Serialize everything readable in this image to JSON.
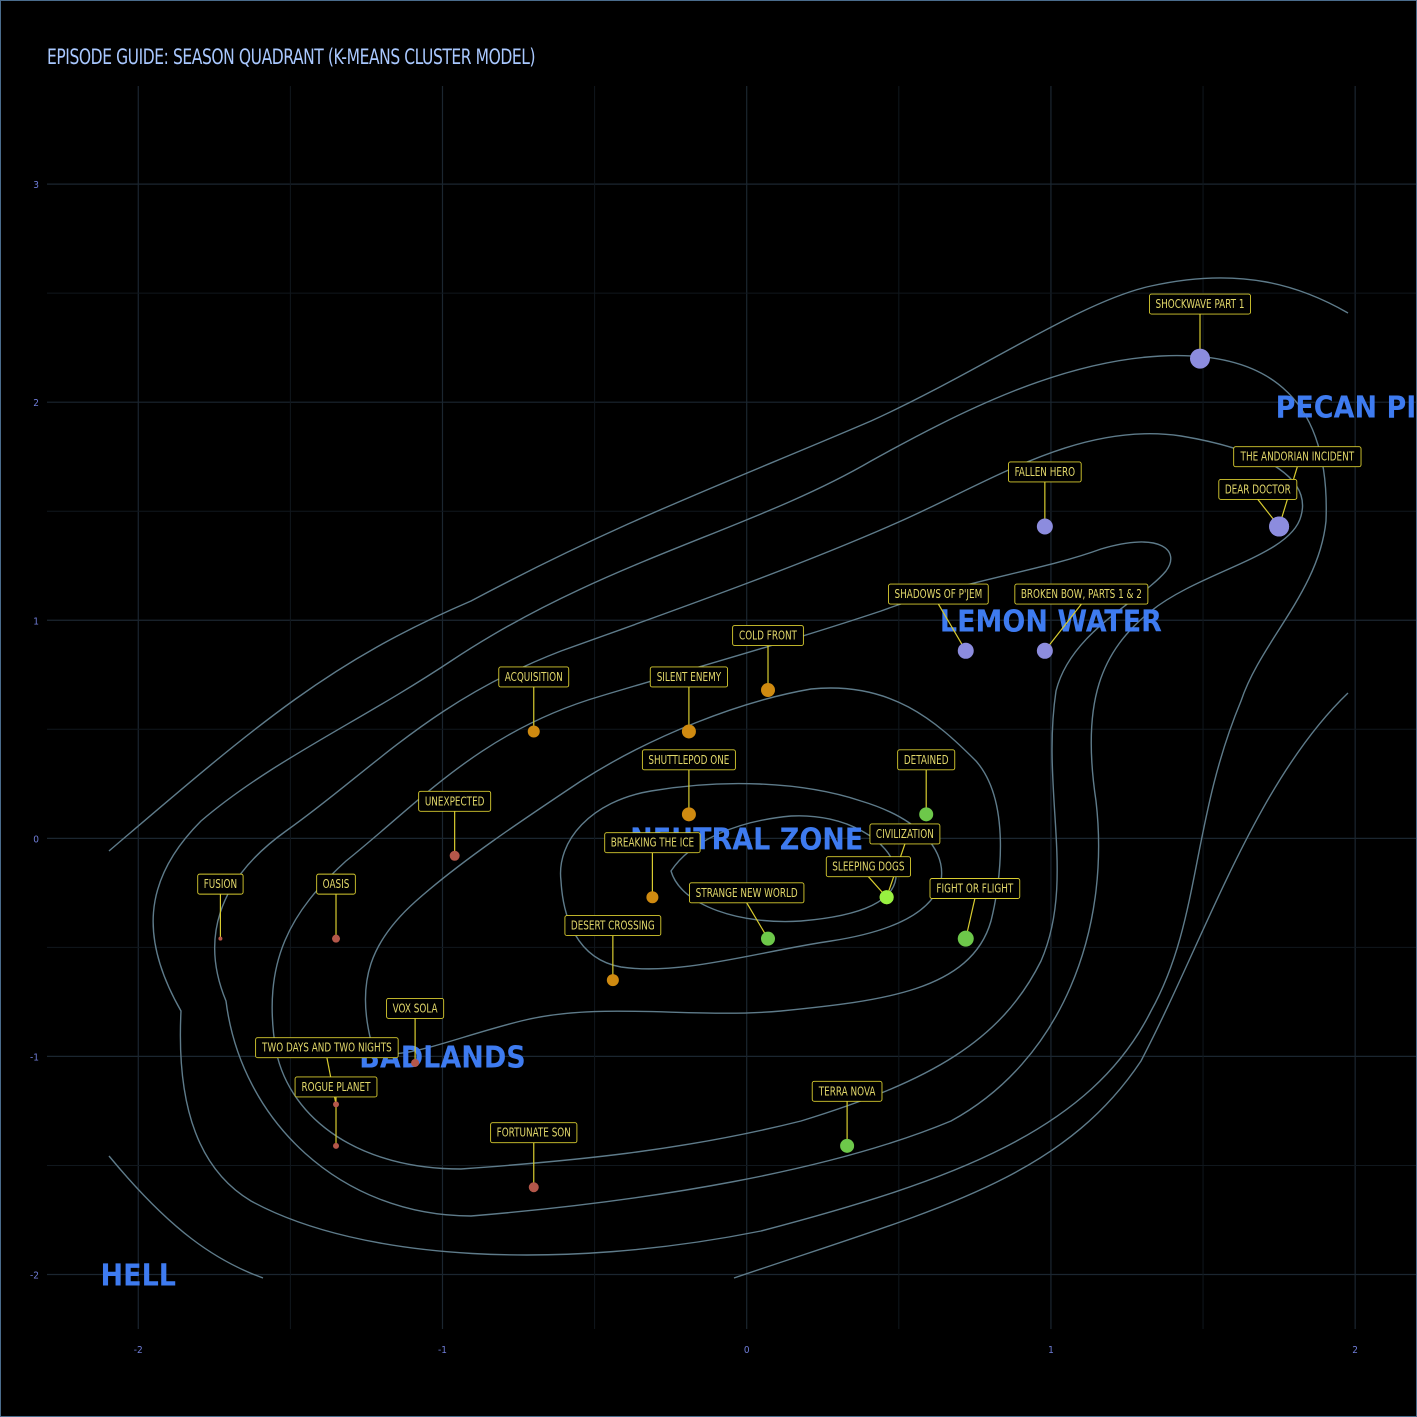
{
  "chart_data": {
    "type": "scatter",
    "title": "EPISODE GUIDE: SEASON QUADRANT (K-MEANS CLUSTER MODEL)",
    "xlabel": "",
    "ylabel": "",
    "xlim": [
      -2.3,
      2.2
    ],
    "ylim": [
      -2.25,
      3.45
    ],
    "xticks": [
      -2,
      -1,
      0,
      1,
      2
    ],
    "yticks": [
      -2,
      -1,
      0,
      1,
      2,
      3
    ],
    "grid": true,
    "legend": "none",
    "cluster_colors": {
      "badlands": "#b4574a",
      "neutral": "#cf8a10",
      "lemon": "#6dc84a",
      "pecan": "#8c8cde",
      "sleeping": "#98f040"
    },
    "regions": [
      {
        "label": "PECAN PIE",
        "x": 2.0,
        "y": 1.98
      },
      {
        "label": "LEMON WATER",
        "x": 1.0,
        "y": 1.0
      },
      {
        "label": "NEUTRAL ZONE",
        "x": 0.0,
        "y": 0.0
      },
      {
        "label": "BADLANDS",
        "x": -1.0,
        "y": -1.0
      },
      {
        "label": "HELL",
        "x": -2.0,
        "y": -2.0
      }
    ],
    "points": [
      {
        "label": "SHOCKWAVE PART 1",
        "x": 1.49,
        "y": 2.2,
        "size": 10,
        "cluster": "pecan",
        "lx": 1.49,
        "ly": 2.45
      },
      {
        "label": "THE ANDORIAN INCIDENT",
        "x": 1.75,
        "y": 1.43,
        "size": 10,
        "cluster": "pecan",
        "lx": 1.81,
        "ly": 1.75
      },
      {
        "label": "DEAR DOCTOR",
        "x": 1.75,
        "y": 1.43,
        "size": 10,
        "cluster": "pecan",
        "lx": 1.68,
        "ly": 1.6
      },
      {
        "label": "FALLEN HERO",
        "x": 0.98,
        "y": 1.43,
        "size": 8,
        "cluster": "pecan",
        "lx": 0.98,
        "ly": 1.68
      },
      {
        "label": "SHADOWS OF P'JEM",
        "x": 0.72,
        "y": 0.86,
        "size": 8,
        "cluster": "pecan",
        "lx": 0.63,
        "ly": 1.12
      },
      {
        "label": "BROKEN BOW, PARTS 1 & 2",
        "x": 0.98,
        "y": 0.86,
        "size": 8,
        "cluster": "pecan",
        "lx": 1.1,
        "ly": 1.12
      },
      {
        "label": "COLD FRONT",
        "x": 0.07,
        "y": 0.68,
        "size": 7,
        "cluster": "neutral",
        "lx": 0.07,
        "ly": 0.93
      },
      {
        "label": "ACQUISITION",
        "x": -0.7,
        "y": 0.49,
        "size": 6,
        "cluster": "neutral",
        "lx": -0.7,
        "ly": 0.74
      },
      {
        "label": "SILENT ENEMY",
        "x": -0.19,
        "y": 0.49,
        "size": 7,
        "cluster": "neutral",
        "lx": -0.19,
        "ly": 0.74
      },
      {
        "label": "SHUTTLEPOD ONE",
        "x": -0.19,
        "y": 0.11,
        "size": 7,
        "cluster": "neutral",
        "lx": -0.19,
        "ly": 0.36
      },
      {
        "label": "DETAINED",
        "x": 0.59,
        "y": 0.11,
        "size": 7,
        "cluster": "lemon",
        "lx": 0.59,
        "ly": 0.36
      },
      {
        "label": "UNEXPECTED",
        "x": -0.96,
        "y": -0.08,
        "size": 5,
        "cluster": "badlands",
        "lx": -0.96,
        "ly": 0.17
      },
      {
        "label": "CIVILIZATION",
        "x": 0.46,
        "y": -0.27,
        "size": 7,
        "cluster": "sleeping",
        "lx": 0.52,
        "ly": 0.02
      },
      {
        "label": "BREAKING THE ICE",
        "x": -0.31,
        "y": -0.27,
        "size": 6,
        "cluster": "neutral",
        "lx": -0.31,
        "ly": -0.02
      },
      {
        "label": "SLEEPING DOGS",
        "x": 0.46,
        "y": -0.27,
        "size": 7,
        "cluster": "sleeping",
        "lx": 0.4,
        "ly": -0.13
      },
      {
        "label": "FIGHT OR FLIGHT",
        "x": 0.72,
        "y": -0.46,
        "size": 8,
        "cluster": "lemon",
        "lx": 0.75,
        "ly": -0.23
      },
      {
        "label": "STRANGE NEW WORLD",
        "x": 0.07,
        "y": -0.46,
        "size": 7,
        "cluster": "lemon",
        "lx": 0.0,
        "ly": -0.25
      },
      {
        "label": "FUSION",
        "x": -1.73,
        "y": -0.46,
        "size": 2,
        "cluster": "badlands",
        "lx": -1.73,
        "ly": -0.21
      },
      {
        "label": "OASIS",
        "x": -1.35,
        "y": -0.46,
        "size": 4,
        "cluster": "badlands",
        "lx": -1.35,
        "ly": -0.21
      },
      {
        "label": "DESERT CROSSING",
        "x": -0.44,
        "y": -0.65,
        "size": 6,
        "cluster": "neutral",
        "lx": -0.44,
        "ly": -0.4
      },
      {
        "label": "VOX SOLA",
        "x": -1.09,
        "y": -1.03,
        "size": 4,
        "cluster": "badlands",
        "lx": -1.09,
        "ly": -0.78
      },
      {
        "label": "TWO DAYS AND TWO NIGHTS",
        "x": -1.35,
        "y": -1.22,
        "size": 3,
        "cluster": "badlands",
        "lx": -1.38,
        "ly": -0.96
      },
      {
        "label": "ROGUE PLANET",
        "x": -1.35,
        "y": -1.41,
        "size": 3,
        "cluster": "badlands",
        "lx": -1.35,
        "ly": -1.14
      },
      {
        "label": "FORTUNATE SON",
        "x": -0.7,
        "y": -1.6,
        "size": 5,
        "cluster": "badlands",
        "lx": -0.7,
        "ly": -1.35
      },
      {
        "label": "TERRA NOVA",
        "x": 0.33,
        "y": -1.41,
        "size": 7,
        "cluster": "lemon",
        "lx": 0.33,
        "ly": -1.16
      }
    ]
  }
}
